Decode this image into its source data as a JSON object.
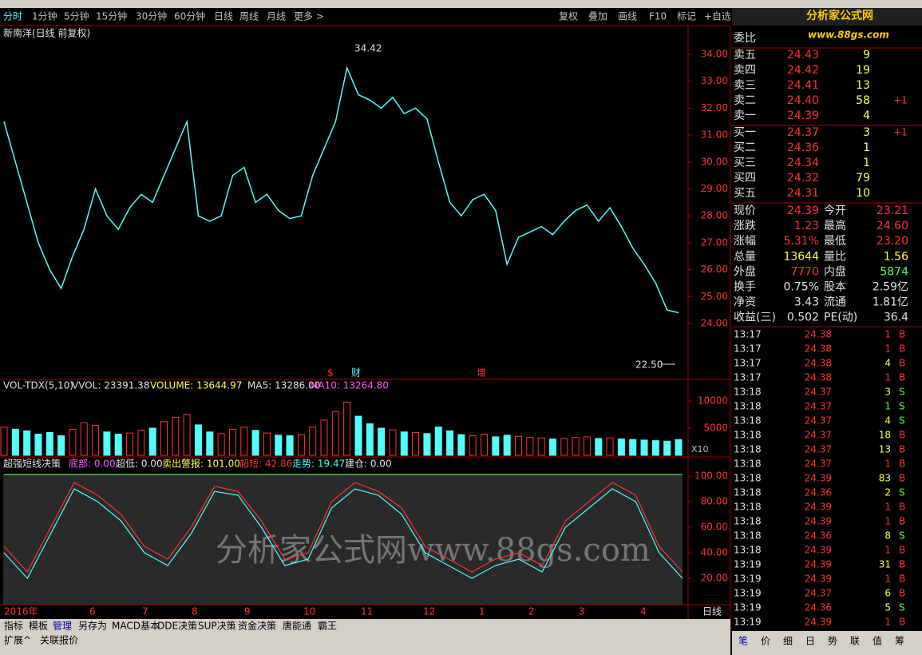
{
  "toolbar": {
    "left": [
      "分时",
      "1分钟",
      "5分钟",
      "15分钟",
      "30分钟",
      "60分钟",
      "日线",
      "周线",
      "月线",
      "更多 >"
    ],
    "right": [
      "复权",
      "叠加",
      "画线",
      "F10",
      "标记",
      "+自选"
    ]
  },
  "logo": {
    "title": "分析家公式网",
    "url": "www.88gs.com"
  },
  "chart": {
    "title": "新南洋(日线 前复权)",
    "price_ticks": [
      {
        "value": 34,
        "label": "34.00"
      },
      {
        "value": 33,
        "label": "33.00"
      },
      {
        "value": 32,
        "label": "32.00"
      },
      {
        "value": 31,
        "label": "31.00"
      },
      {
        "value": 30,
        "label": "30.00"
      },
      {
        "value": 29,
        "label": "29.00"
      },
      {
        "value": 28,
        "label": "28.00"
      },
      {
        "value": 27,
        "label": "27.00"
      },
      {
        "value": 26,
        "label": "26.00"
      },
      {
        "value": 25,
        "label": "25.00"
      },
      {
        "value": 24,
        "label": "24.00"
      }
    ],
    "high_label": 34.42,
    "low_label": "22.50",
    "closes": [
      31.5,
      30,
      28.5,
      27,
      26,
      25.3,
      26.5,
      27.5,
      29,
      28,
      27.5,
      28.3,
      28.8,
      28.5,
      29.5,
      30.5,
      31.5,
      28,
      27.8,
      28,
      29.5,
      29.8,
      28.5,
      28.8,
      28.2,
      27.9,
      28,
      29.5,
      30.5,
      31.5,
      33.5,
      32.5,
      32.3,
      32,
      32.4,
      31.8,
      32,
      31.6,
      30,
      28.5,
      28,
      28.6,
      28.8,
      28.2,
      26.2,
      27.2,
      27.4,
      27.6,
      27.3,
      27.8,
      28.2,
      28.4,
      27.8,
      28.3,
      27.6,
      26.8,
      26.2,
      25.5,
      24.5,
      24.4
    ],
    "markers": [
      "$",
      "财",
      "增"
    ],
    "vol_header": [
      "VOL-TDX(5,10)",
      "VVOL: 23391.38",
      "VOLUME: 13644.97",
      "MA5: 13286.00",
      "MA10: 13264.80"
    ],
    "vol_ticks": [
      10000,
      5000
    ],
    "vol_unit": "X10",
    "volumes": [
      5200,
      4800,
      4500,
      3900,
      4200,
      3600,
      4800,
      6000,
      5500,
      4300,
      3900,
      4100,
      4600,
      5000,
      6200,
      7000,
      7500,
      5600,
      4300,
      4000,
      4800,
      5200,
      4600,
      4100,
      3700,
      3600,
      3800,
      5200,
      6500,
      8000,
      9800,
      7200,
      5800,
      5000,
      4700,
      4300,
      4200,
      4000,
      5200,
      4500,
      3800,
      3600,
      3900,
      3400,
      3700,
      3500,
      3300,
      3200,
      3000,
      3100,
      3300,
      3400,
      3100,
      3200,
      3000,
      2900,
      2800,
      2700,
      2600,
      2900
    ],
    "ind_header": [
      "超强短线决策",
      "底部: 0.00",
      "超低: 0.00",
      "卖出警报: 101.00",
      "超短: 42.86",
      "走势: 19.47",
      "建仓: 0.00"
    ],
    "ind_ticks": [
      {
        "value": 100,
        "label": "100.00"
      },
      {
        "value": 80,
        "label": "80.00"
      },
      {
        "value": 60,
        "label": "60.00"
      },
      {
        "value": 40,
        "label": "40.00"
      },
      {
        "value": 20,
        "label": "20.00"
      }
    ],
    "fast": [
      45,
      25,
      60,
      95,
      85,
      70,
      45,
      35,
      60,
      92,
      88,
      65,
      35,
      40,
      80,
      95,
      88,
      75,
      45,
      35,
      25,
      35,
      40,
      30,
      65,
      80,
      95,
      85,
      45,
      25
    ],
    "slow": [
      40,
      20,
      55,
      90,
      80,
      65,
      40,
      30,
      55,
      88,
      85,
      60,
      30,
      35,
      75,
      90,
      85,
      70,
      40,
      30,
      20,
      30,
      35,
      25,
      60,
      75,
      90,
      80,
      40,
      20
    ],
    "dates": [
      "2016年",
      "6",
      "7",
      "8",
      "9",
      "10",
      "11",
      "12",
      "1",
      "2",
      "3",
      "4"
    ],
    "period": "日线",
    "watermark": "分析家公式网www.88gs.com"
  },
  "tabs": [
    "指标",
    "模板",
    "管理",
    "另存为",
    "MACD基本",
    "DDE决策",
    "SUP决策",
    "资金决策",
    "唐能通",
    "霸王"
  ],
  "tabs2": [
    "扩展^",
    "关联报价"
  ],
  "quote": {
    "ratio_label": "委比",
    "sells": [
      [
        "卖五",
        "24.43",
        "9",
        ""
      ],
      [
        "卖四",
        "24.42",
        "19",
        ""
      ],
      [
        "卖三",
        "24.41",
        "13",
        ""
      ],
      [
        "卖二",
        "24.40",
        "58",
        "+1"
      ],
      [
        "卖一",
        "24.39",
        "4",
        ""
      ]
    ],
    "buys": [
      [
        "买一",
        "24.37",
        "3",
        "+1"
      ],
      [
        "买二",
        "24.36",
        "1",
        ""
      ],
      [
        "买三",
        "24.34",
        "1",
        ""
      ],
      [
        "买四",
        "24.32",
        "79",
        ""
      ],
      [
        "买五",
        "24.31",
        "10",
        ""
      ]
    ],
    "stats": [
      [
        "现价",
        "24.39",
        "今开",
        "23.21"
      ],
      [
        "涨跌",
        "1.23",
        "最高",
        "24.60"
      ],
      [
        "涨幅",
        "5.31%",
        "最低",
        "23.20"
      ],
      [
        "总量",
        "13644",
        "量比",
        "1.56"
      ],
      [
        "外盘",
        "7770",
        "内盘",
        "5874"
      ],
      [
        "换手",
        "0.75%",
        "股本",
        "2.59亿"
      ],
      [
        "净资",
        "3.43",
        "流通",
        "1.81亿"
      ],
      [
        "收益(三)",
        "0.502",
        "PE(动)",
        "36.4"
      ]
    ],
    "trades": [
      [
        "13:17",
        "24.38",
        "1",
        "B"
      ],
      [
        "13:17",
        "24.38",
        "1",
        "B"
      ],
      [
        "13:17",
        "24.38",
        "4",
        "B"
      ],
      [
        "13:17",
        "24.38",
        "1",
        "B"
      ],
      [
        "13:18",
        "24.37",
        "3",
        "S"
      ],
      [
        "13:18",
        "24.37",
        "1",
        "S"
      ],
      [
        "13:18",
        "24.37",
        "4",
        "S"
      ],
      [
        "13:18",
        "24.37",
        "18",
        "B"
      ],
      [
        "13:18",
        "24.37",
        "13",
        "B"
      ],
      [
        "13:18",
        "24.37",
        "1",
        "B"
      ],
      [
        "13:18",
        "24.39",
        "83",
        "B"
      ],
      [
        "13:18",
        "24.36",
        "2",
        "S"
      ],
      [
        "13:18",
        "24.39",
        "1",
        "B"
      ],
      [
        "13:18",
        "24.39",
        "1",
        "B"
      ],
      [
        "13:18",
        "24.36",
        "8",
        "S"
      ],
      [
        "13:18",
        "24.39",
        "1",
        "B"
      ],
      [
        "13:19",
        "24.39",
        "31",
        "B"
      ],
      [
        "13:19",
        "24.39",
        "1",
        "B"
      ],
      [
        "13:19",
        "24.37",
        "6",
        "B"
      ],
      [
        "13:19",
        "24.36",
        "5",
        "S"
      ],
      [
        "13:19",
        "24.39",
        "1",
        "B"
      ]
    ],
    "bottom_tabs": [
      "笔",
      "价",
      "细",
      "日",
      "势",
      "联",
      "值",
      "筹"
    ]
  }
}
